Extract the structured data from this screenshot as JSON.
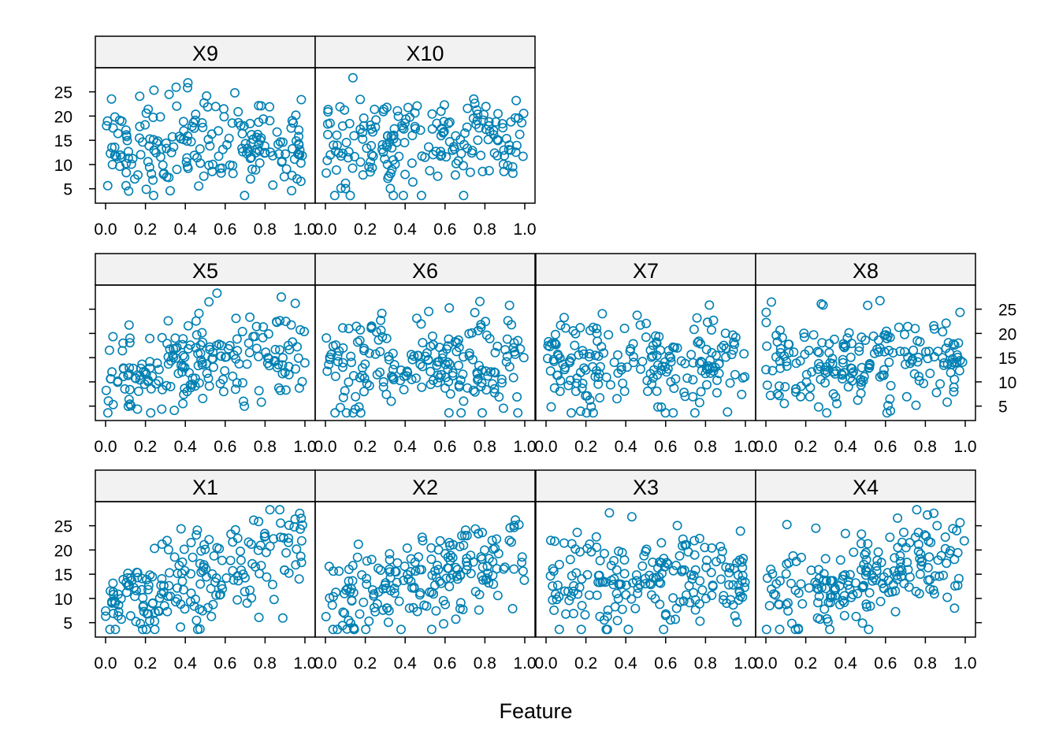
{
  "chart_data": {
    "type": "scatter",
    "xlabel": "Feature",
    "ylabel": "",
    "xlim": [
      0,
      1
    ],
    "ylim": [
      3,
      29
    ],
    "x_ticks": [
      "0.0",
      "0.2",
      "0.4",
      "0.6",
      "0.8",
      "1.0"
    ],
    "y_ticks": [
      "5",
      "10",
      "15",
      "20",
      "25"
    ],
    "grid": false,
    "point_style": "open-circle",
    "point_color": "#0080B3",
    "panels": [
      {
        "name": "X9",
        "row": 0,
        "col": 0,
        "trend": 0,
        "seed": 9
      },
      {
        "name": "X10",
        "row": 0,
        "col": 1,
        "trend": 0,
        "seed": 10
      },
      {
        "name": "X5",
        "row": 1,
        "col": 0,
        "trend": 6,
        "seed": 5
      },
      {
        "name": "X6",
        "row": 1,
        "col": 1,
        "trend": 0,
        "seed": 6
      },
      {
        "name": "X7",
        "row": 1,
        "col": 2,
        "trend": -1,
        "seed": 7
      },
      {
        "name": "X8",
        "row": 1,
        "col": 3,
        "trend": 0,
        "seed": 8
      },
      {
        "name": "X1",
        "row": 2,
        "col": 0,
        "trend": 10,
        "seed": 1
      },
      {
        "name": "X2",
        "row": 2,
        "col": 1,
        "trend": 10,
        "seed": 2
      },
      {
        "name": "X3",
        "row": 2,
        "col": 2,
        "trend": 1,
        "seed": 3
      },
      {
        "name": "X4",
        "row": 2,
        "col": 3,
        "trend": 11,
        "seed": 4
      }
    ]
  },
  "colors": {
    "strip_background": "#F2F2F2",
    "points": "#0080B3",
    "frame": "#000000"
  }
}
